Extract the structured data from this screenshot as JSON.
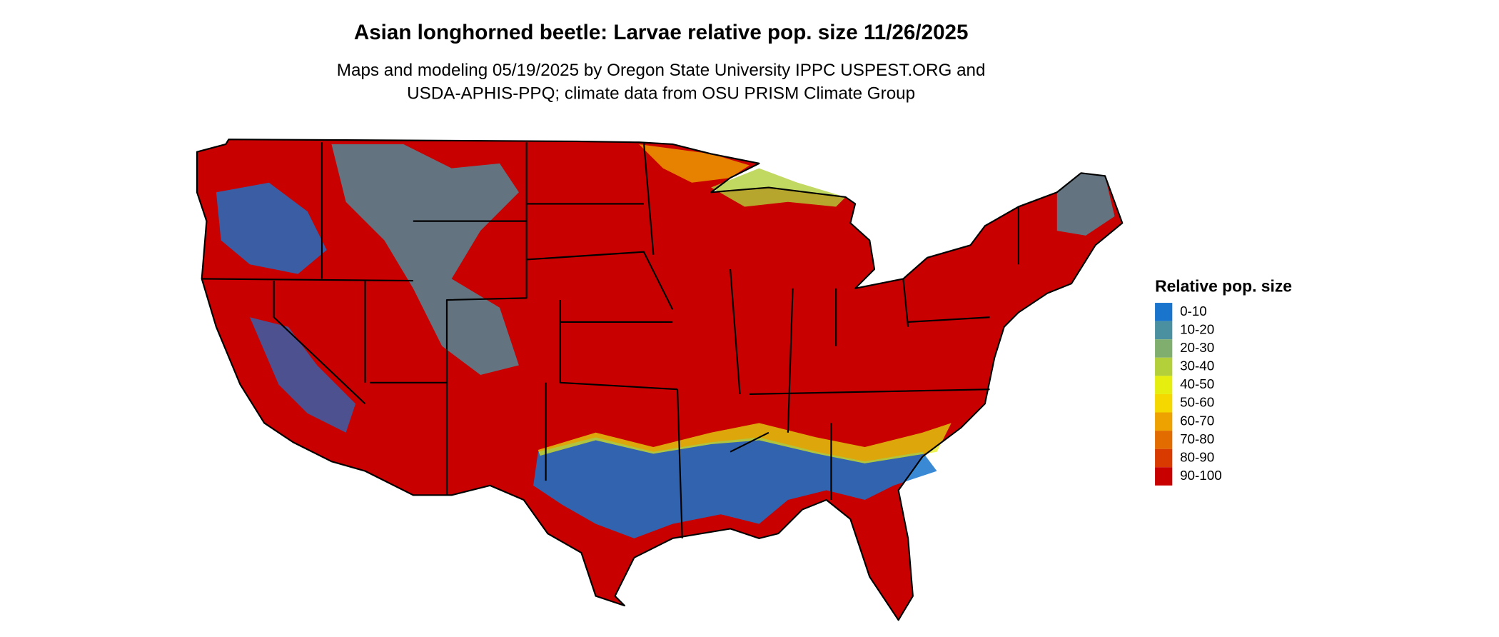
{
  "title": "Asian longhorned beetle: Larvae relative pop. size 11/26/2025",
  "subtitle": [
    "Maps and modeling 05/19/2025 by Oregon State University IPPC USPEST.ORG and",
    "USDA-APHIS-PPQ; climate data from OSU PRISM Climate Group"
  ],
  "legend": {
    "title": "Relative pop. size",
    "items": [
      {
        "label": "0-10",
        "color": "#1874cd"
      },
      {
        "label": "10-20",
        "color": "#4a90a0"
      },
      {
        "label": "20-30",
        "color": "#7fae6e"
      },
      {
        "label": "30-40",
        "color": "#b3cf3a"
      },
      {
        "label": "40-50",
        "color": "#e6ee10"
      },
      {
        "label": "50-60",
        "color": "#f5d800"
      },
      {
        "label": "60-70",
        "color": "#eea200"
      },
      {
        "label": "70-80",
        "color": "#e36c00"
      },
      {
        "label": "80-90",
        "color": "#d83a00"
      },
      {
        "label": "90-100",
        "color": "#c80000"
      }
    ]
  }
}
